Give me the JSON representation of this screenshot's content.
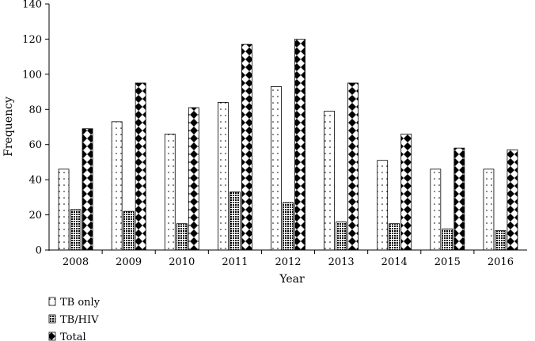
{
  "chart_data": {
    "type": "bar",
    "categories": [
      "2008",
      "2009",
      "2010",
      "2011",
      "2012",
      "2013",
      "2014",
      "2015",
      "2016"
    ],
    "series": [
      {
        "name": "TB only",
        "pattern": "dots",
        "values": [
          46,
          73,
          66,
          84,
          93,
          79,
          51,
          46,
          46
        ]
      },
      {
        "name": "TB/HIV",
        "pattern": "dense-grid",
        "values": [
          23,
          22,
          15,
          33,
          27,
          16,
          15,
          12,
          11
        ]
      },
      {
        "name": "Total",
        "pattern": "diamonds",
        "values": [
          69,
          95,
          81,
          117,
          120,
          95,
          66,
          58,
          57
        ]
      }
    ],
    "xlabel": "Year",
    "ylabel": "Frequency",
    "ylim": [
      0,
      140
    ],
    "yticks": [
      0,
      20,
      40,
      60,
      80,
      100,
      120,
      140
    ],
    "grid": false,
    "legend_position": "bottom-left"
  }
}
